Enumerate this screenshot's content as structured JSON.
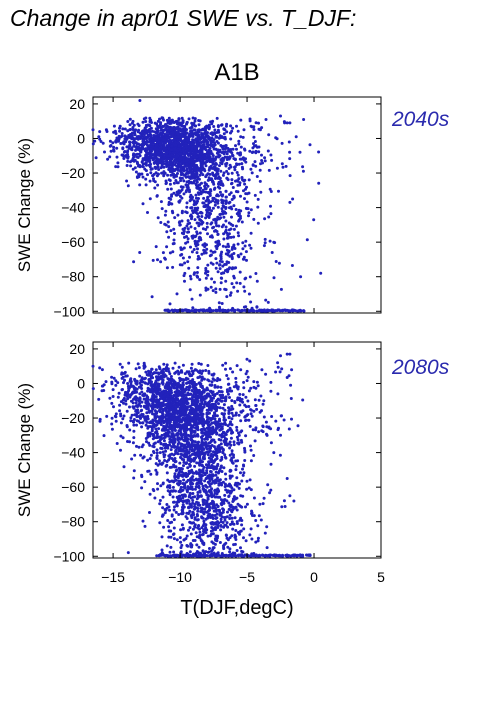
{
  "figure": {
    "title": "Change in apr01 SWE vs. T_DJF:",
    "subtitle": "A1B"
  },
  "colors": {
    "points": "#2222bb",
    "period_label": "#2a2aae",
    "axes": "#000000",
    "background": "#ffffff"
  },
  "chart_data": [
    {
      "type": "scatter",
      "panel_label": "2040s",
      "xlabel": "",
      "ylabel": "SWE Change (%)",
      "xlim": [
        -16.5,
        5
      ],
      "ylim": [
        -101,
        24
      ],
      "xticks": [
        -15,
        -10,
        -5,
        0,
        5
      ],
      "yticks": [
        20,
        0,
        -20,
        -40,
        -60,
        -80,
        -100
      ],
      "x_tick_labels_shown": false,
      "grid": false,
      "point_count_approx": 2500,
      "clusters": [
        {
          "x_mean": -10.2,
          "x_sd": 1.8,
          "y_mean": -6,
          "y_sd": 9,
          "weight": 0.5
        },
        {
          "x_mean": -12.5,
          "x_sd": 1.6,
          "y_mean": -2,
          "y_sd": 5,
          "weight": 0.1
        },
        {
          "x_mean": -8.0,
          "x_sd": 1.8,
          "y_mean": -35,
          "y_sd": 20,
          "weight": 0.25
        },
        {
          "x_mean": -7.0,
          "x_sd": 2.0,
          "y_mean": -70,
          "y_sd": 18,
          "weight": 0.08
        },
        {
          "x_mean": -6.0,
          "x_sd": 2.5,
          "y_mean": -10,
          "y_sd": 12,
          "weight": 0.07
        }
      ],
      "floor_points": [
        {
          "x": -11.0,
          "y": -100
        },
        {
          "x": -10.5,
          "y": -100
        },
        {
          "x": -10.0,
          "y": -100
        },
        {
          "x": -9.5,
          "y": -100
        },
        {
          "x": -9.0,
          "y": -100
        },
        {
          "x": -8.5,
          "y": -100
        },
        {
          "x": -8.0,
          "y": -100
        },
        {
          "x": -7.5,
          "y": -100
        },
        {
          "x": -7.0,
          "y": -100
        },
        {
          "x": -6.5,
          "y": -100
        },
        {
          "x": -6.0,
          "y": -100
        },
        {
          "x": -5.5,
          "y": -100
        },
        {
          "x": -5.0,
          "y": -100
        },
        {
          "x": -4.5,
          "y": -100
        },
        {
          "x": -4.0,
          "y": -100
        },
        {
          "x": -3.5,
          "y": -100
        },
        {
          "x": -3.0,
          "y": -100
        },
        {
          "x": -2.5,
          "y": -100
        },
        {
          "x": -2.0,
          "y": -100
        },
        {
          "x": -1.5,
          "y": -100
        },
        {
          "x": -1.0,
          "y": -100
        }
      ],
      "outliers": [
        {
          "x": -16.5,
          "y": 5
        },
        {
          "x": -16.0,
          "y": 4
        },
        {
          "x": -15.5,
          "y": 5
        },
        {
          "x": -13.0,
          "y": 22
        },
        {
          "x": -2.5,
          "y": 13
        },
        {
          "x": -2.2,
          "y": 9
        },
        {
          "x": -2.0,
          "y": 9
        },
        {
          "x": -1.8,
          "y": 9
        },
        {
          "x": -1.6,
          "y": -35
        },
        {
          "x": -1.8,
          "y": -37
        },
        {
          "x": 0.5,
          "y": -78
        },
        {
          "x": -1.0,
          "y": -80
        },
        {
          "x": -3.0,
          "y": -60
        },
        {
          "x": -4.0,
          "y": 5
        }
      ]
    },
    {
      "type": "scatter",
      "panel_label": "2080s",
      "xlabel": "T(DJF,degC)",
      "ylabel": "SWE Change (%)",
      "xlim": [
        -16.5,
        5
      ],
      "ylim": [
        -101,
        24
      ],
      "xticks": [
        -15,
        -10,
        -5,
        0,
        5
      ],
      "xtick_labels": [
        "−15",
        "−10",
        "−5",
        "0",
        "5"
      ],
      "yticks": [
        20,
        0,
        -20,
        -40,
        -60,
        -80,
        -100
      ],
      "x_tick_labels_shown": true,
      "grid": false,
      "point_count_approx": 3000,
      "clusters": [
        {
          "x_mean": -10.0,
          "x_sd": 1.7,
          "y_mean": -18,
          "y_sd": 13,
          "weight": 0.4
        },
        {
          "x_mean": -12.0,
          "x_sd": 1.8,
          "y_mean": -5,
          "y_sd": 8,
          "weight": 0.12
        },
        {
          "x_mean": -8.5,
          "x_sd": 1.6,
          "y_mean": -50,
          "y_sd": 20,
          "weight": 0.28
        },
        {
          "x_mean": -7.5,
          "x_sd": 1.8,
          "y_mean": -80,
          "y_sd": 12,
          "weight": 0.12
        },
        {
          "x_mean": -6.0,
          "x_sd": 2.3,
          "y_mean": -15,
          "y_sd": 15,
          "weight": 0.08
        }
      ],
      "floor_points": [
        {
          "x": -11.5,
          "y": -100
        },
        {
          "x": -11.0,
          "y": -100
        },
        {
          "x": -10.5,
          "y": -100
        },
        {
          "x": -10.0,
          "y": -100
        },
        {
          "x": -9.5,
          "y": -100
        },
        {
          "x": -9.0,
          "y": -100
        },
        {
          "x": -8.5,
          "y": -100
        },
        {
          "x": -8.0,
          "y": -100
        },
        {
          "x": -7.5,
          "y": -100
        },
        {
          "x": -7.0,
          "y": -100
        },
        {
          "x": -6.5,
          "y": -100
        },
        {
          "x": -6.0,
          "y": -100
        },
        {
          "x": -5.5,
          "y": -100
        },
        {
          "x": -5.0,
          "y": -100
        },
        {
          "x": -4.5,
          "y": -100
        },
        {
          "x": -4.0,
          "y": -100
        },
        {
          "x": -3.5,
          "y": -100
        },
        {
          "x": -3.0,
          "y": -100
        },
        {
          "x": -2.5,
          "y": -100
        },
        {
          "x": -2.0,
          "y": -100
        },
        {
          "x": -1.5,
          "y": -100
        },
        {
          "x": -1.0,
          "y": -100
        },
        {
          "x": -0.5,
          "y": -100
        }
      ],
      "outliers": [
        {
          "x": -16.5,
          "y": 10
        },
        {
          "x": -16.0,
          "y": 9
        },
        {
          "x": -15.8,
          "y": 8
        },
        {
          "x": -5.0,
          "y": 14
        },
        {
          "x": -4.8,
          "y": 13
        },
        {
          "x": -2.5,
          "y": 16
        },
        {
          "x": -2.0,
          "y": 17
        },
        {
          "x": -1.8,
          "y": 17
        },
        {
          "x": -1.8,
          "y": -65
        },
        {
          "x": -1.5,
          "y": -68
        },
        {
          "x": -2.0,
          "y": -55
        },
        {
          "x": -3.0,
          "y": -40
        },
        {
          "x": -2.5,
          "y": -30
        },
        {
          "x": -3.5,
          "y": -95
        }
      ]
    }
  ]
}
